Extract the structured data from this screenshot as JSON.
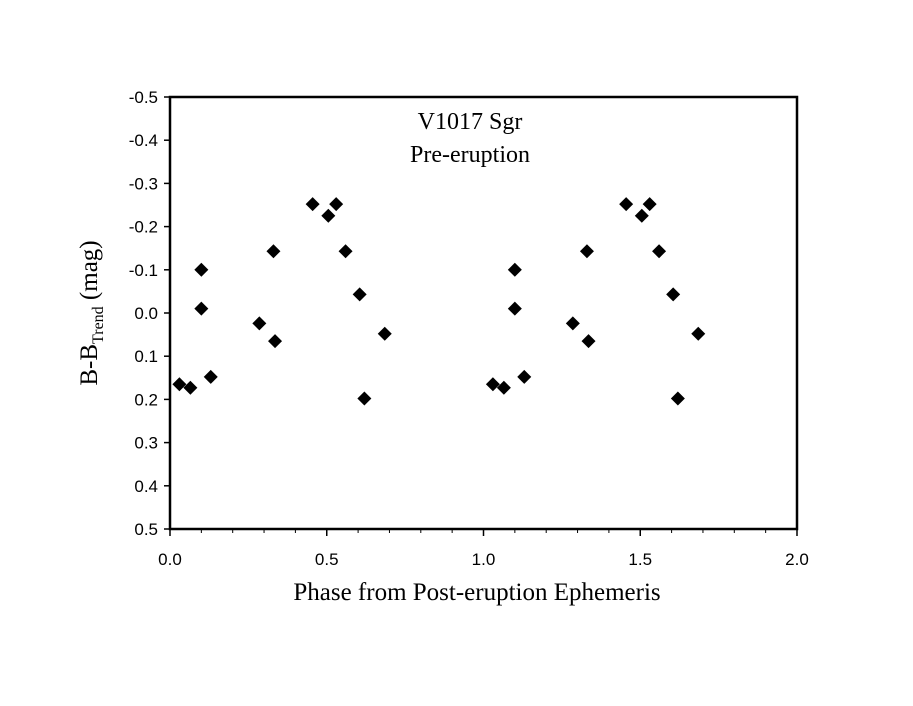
{
  "chart_data": {
    "type": "scatter",
    "title_lines": [
      "V1017 Sgr",
      "Pre-eruption"
    ],
    "xlabel": "Phase from Post-eruption Ephemeris",
    "ylabel": {
      "base": "B-B",
      "subscript": "Trend",
      "suffix": " (mag)"
    },
    "xlim": [
      0,
      2
    ],
    "ylim": [
      -0.5,
      0.5
    ],
    "y_inverted": true,
    "grid": false,
    "x_ticks": [
      0.0,
      0.5,
      1.0,
      1.5,
      2.0
    ],
    "x_tick_labels": [
      "0.0",
      "0.5",
      "1.0",
      "1.5",
      "2.0"
    ],
    "y_ticks": [
      -0.5,
      -0.4,
      -0.3,
      -0.2,
      -0.1,
      0.0,
      0.1,
      0.2,
      0.3,
      0.4,
      0.5
    ],
    "y_tick_labels": [
      "-0.5",
      "-0.4",
      "-0.3",
      "-0.2",
      "-0.1",
      "0.0",
      "0.1",
      "0.2",
      "0.3",
      "0.4",
      "0.5"
    ],
    "marker": "diamond",
    "marker_color": "#000000",
    "points": [
      {
        "x": 0.03,
        "y": 0.165
      },
      {
        "x": 0.065,
        "y": 0.173
      },
      {
        "x": 0.1,
        "y": -0.1
      },
      {
        "x": 0.1,
        "y": -0.01
      },
      {
        "x": 0.13,
        "y": 0.148
      },
      {
        "x": 0.285,
        "y": 0.024
      },
      {
        "x": 0.33,
        "y": -0.143
      },
      {
        "x": 0.335,
        "y": 0.065
      },
      {
        "x": 0.455,
        "y": -0.252
      },
      {
        "x": 0.505,
        "y": -0.225
      },
      {
        "x": 0.53,
        "y": -0.252
      },
      {
        "x": 0.56,
        "y": -0.143
      },
      {
        "x": 0.605,
        "y": -0.043
      },
      {
        "x": 0.62,
        "y": 0.198
      },
      {
        "x": 0.685,
        "y": 0.048
      },
      {
        "x": 1.03,
        "y": 0.165
      },
      {
        "x": 1.065,
        "y": 0.173
      },
      {
        "x": 1.1,
        "y": -0.1
      },
      {
        "x": 1.1,
        "y": -0.01
      },
      {
        "x": 1.13,
        "y": 0.148
      },
      {
        "x": 1.285,
        "y": 0.024
      },
      {
        "x": 1.33,
        "y": -0.143
      },
      {
        "x": 1.335,
        "y": 0.065
      },
      {
        "x": 1.455,
        "y": -0.252
      },
      {
        "x": 1.505,
        "y": -0.225
      },
      {
        "x": 1.53,
        "y": -0.252
      },
      {
        "x": 1.56,
        "y": -0.143
      },
      {
        "x": 1.605,
        "y": -0.043
      },
      {
        "x": 1.62,
        "y": 0.198
      },
      {
        "x": 1.685,
        "y": 0.048
      }
    ]
  }
}
